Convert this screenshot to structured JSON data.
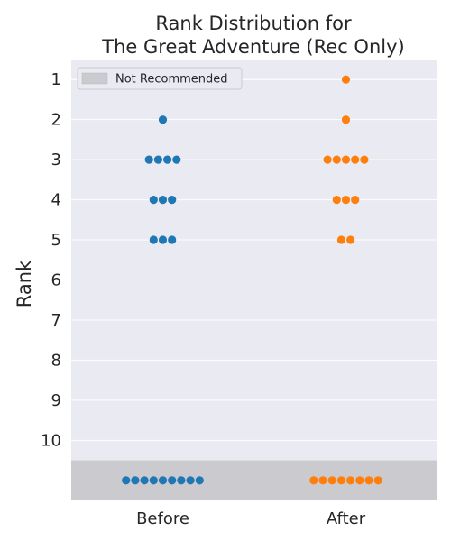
{
  "chart_data": {
    "type": "scatter",
    "title_lines": [
      "Rank Distribution for",
      "The Great Adventure (Rec Only)"
    ],
    "ylabel": "Rank",
    "xlabel": "",
    "categories": [
      "Before",
      "After"
    ],
    "rank_ticks": [
      "1",
      "2",
      "3",
      "4",
      "5",
      "6",
      "7",
      "8",
      "9",
      "10"
    ],
    "ylim": [
      0.5,
      11.5
    ],
    "grid": true,
    "legend": {
      "placement": "top-left",
      "label": "Not Recommended",
      "color": "#cbcacf"
    },
    "series": [
      {
        "category": "Before",
        "color": "#1f77b4",
        "counts": [
          {
            "rank": 2,
            "count": 1
          },
          {
            "rank": 3,
            "count": 4
          },
          {
            "rank": 4,
            "count": 3
          },
          {
            "rank": 5,
            "count": 3
          },
          {
            "rank": "not_recommended",
            "count": 9
          }
        ]
      },
      {
        "category": "After",
        "color": "#ff7f0e",
        "counts": [
          {
            "rank": 1,
            "count": 1
          },
          {
            "rank": 2,
            "count": 1
          },
          {
            "rank": 3,
            "count": 5
          },
          {
            "rank": 4,
            "count": 3
          },
          {
            "rank": 5,
            "count": 2
          },
          {
            "rank": "not_recommended",
            "count": 8
          }
        ]
      }
    ],
    "colors": {
      "plot_bg": "#eaeaf2",
      "grid": "#ffffff",
      "text": "#262626"
    }
  }
}
